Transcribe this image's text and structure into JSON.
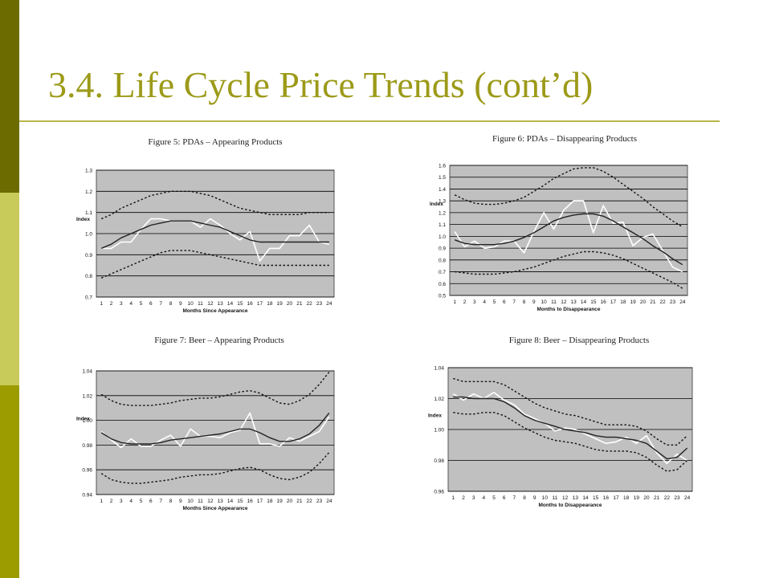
{
  "slide": {
    "title": "3.4. Life Cycle Price Trends (cont’d)",
    "colors": {
      "title": "#9c9a18",
      "bar_dark": "#6b6b00",
      "bar_light": "#c8ca5a",
      "bar_mid": "#9c9c00",
      "plot_bg": "#c0c0c0"
    }
  },
  "chart_data": [
    {
      "type": "line",
      "title": "Figure 5: PDAs – Appearing Products",
      "xlabel": "Months Since Appearance",
      "ylabel": "Index",
      "x": [
        1,
        2,
        3,
        4,
        5,
        6,
        7,
        8,
        9,
        10,
        11,
        12,
        13,
        14,
        15,
        16,
        17,
        18,
        19,
        20,
        21,
        22,
        23,
        24
      ],
      "ylim": [
        0.7,
        1.3
      ],
      "yticks": [
        "0.7",
        "0.8",
        "0.9",
        "1.0",
        "1.1",
        "1.2",
        "1.3"
      ],
      "grid": true,
      "series": [
        {
          "style": "solid-white",
          "values": [
            0.93,
            0.93,
            0.96,
            0.96,
            1.02,
            1.07,
            1.07,
            1.06,
            1.06,
            1.06,
            1.03,
            1.07,
            1.04,
            1.0,
            0.97,
            1.01,
            0.87,
            0.93,
            0.93,
            0.99,
            0.99,
            1.04,
            0.96,
            0.95
          ]
        },
        {
          "style": "solid-dark",
          "values": [
            0.93,
            0.95,
            0.98,
            1.0,
            1.02,
            1.04,
            1.05,
            1.06,
            1.06,
            1.06,
            1.05,
            1.04,
            1.03,
            1.01,
            0.99,
            0.97,
            0.96,
            0.96,
            0.96,
            0.96,
            0.96,
            0.96,
            0.96,
            0.96
          ]
        },
        {
          "style": "dotted-upper",
          "values": [
            1.07,
            1.09,
            1.12,
            1.14,
            1.16,
            1.18,
            1.19,
            1.2,
            1.2,
            1.2,
            1.19,
            1.18,
            1.16,
            1.14,
            1.12,
            1.11,
            1.1,
            1.09,
            1.09,
            1.09,
            1.09,
            1.1,
            1.1,
            1.1
          ]
        },
        {
          "style": "dotted-lower",
          "values": [
            0.79,
            0.81,
            0.83,
            0.85,
            0.87,
            0.89,
            0.91,
            0.92,
            0.92,
            0.92,
            0.91,
            0.9,
            0.89,
            0.88,
            0.87,
            0.86,
            0.85,
            0.85,
            0.85,
            0.85,
            0.85,
            0.85,
            0.85,
            0.85
          ]
        }
      ]
    },
    {
      "type": "line",
      "title": "Figure 6: PDAs – Disappearing Products",
      "xlabel": "Months to Disappearance",
      "ylabel": "Index",
      "x": [
        1,
        2,
        3,
        4,
        5,
        6,
        7,
        8,
        9,
        10,
        11,
        12,
        13,
        14,
        15,
        16,
        17,
        18,
        19,
        20,
        21,
        22,
        23,
        24
      ],
      "ylim": [
        0.5,
        1.6
      ],
      "yticks": [
        "0.5",
        "0.6",
        "0.7",
        "0.8",
        "0.9",
        "1.0",
        "1.1",
        "1.2",
        "1.3",
        "1.4",
        "1.5",
        "1.6"
      ],
      "grid": true,
      "series": [
        {
          "style": "solid-white",
          "values": [
            1.04,
            0.91,
            0.96,
            0.9,
            0.91,
            0.96,
            0.96,
            0.86,
            1.04,
            1.2,
            1.06,
            1.22,
            1.3,
            1.3,
            1.03,
            1.26,
            1.11,
            1.12,
            0.92,
            0.99,
            1.02,
            0.88,
            0.74,
            0.7
          ]
        },
        {
          "style": "solid-dark",
          "values": [
            0.97,
            0.94,
            0.93,
            0.93,
            0.93,
            0.94,
            0.96,
            0.99,
            1.03,
            1.08,
            1.13,
            1.16,
            1.18,
            1.19,
            1.19,
            1.17,
            1.13,
            1.08,
            1.03,
            0.98,
            0.92,
            0.87,
            0.81,
            0.76
          ]
        },
        {
          "style": "dotted-upper",
          "values": [
            1.35,
            1.31,
            1.28,
            1.27,
            1.27,
            1.28,
            1.3,
            1.33,
            1.38,
            1.43,
            1.49,
            1.53,
            1.57,
            1.58,
            1.58,
            1.55,
            1.5,
            1.44,
            1.38,
            1.32,
            1.25,
            1.19,
            1.13,
            1.08
          ]
        },
        {
          "style": "dotted-lower",
          "values": [
            0.7,
            0.69,
            0.68,
            0.68,
            0.68,
            0.69,
            0.7,
            0.72,
            0.74,
            0.77,
            0.8,
            0.83,
            0.85,
            0.87,
            0.87,
            0.86,
            0.84,
            0.81,
            0.77,
            0.73,
            0.69,
            0.65,
            0.61,
            0.56
          ]
        }
      ]
    },
    {
      "type": "line",
      "title": "Figure 7: Beer – Appearing Products",
      "xlabel": "Months Since Appearance",
      "ylabel": "Index",
      "x": [
        1,
        2,
        3,
        4,
        5,
        6,
        7,
        8,
        9,
        10,
        11,
        12,
        13,
        14,
        15,
        16,
        17,
        18,
        19,
        20,
        21,
        22,
        23,
        24
      ],
      "ylim": [
        0.94,
        1.04
      ],
      "yticks": [
        "0.94",
        "0.96",
        "0.98",
        "1.00",
        "1.02",
        "1.04"
      ],
      "grid": true,
      "series": [
        {
          "style": "solid-white",
          "values": [
            0.991,
            0.984,
            0.978,
            0.985,
            0.979,
            0.979,
            0.984,
            0.988,
            0.979,
            0.993,
            0.987,
            0.987,
            0.986,
            0.99,
            0.992,
            1.006,
            0.981,
            0.981,
            0.979,
            0.986,
            0.983,
            0.987,
            0.991,
            1.003
          ]
        },
        {
          "style": "solid-dark",
          "values": [
            0.99,
            0.985,
            0.982,
            0.981,
            0.981,
            0.981,
            0.982,
            0.984,
            0.985,
            0.986,
            0.987,
            0.988,
            0.989,
            0.991,
            0.993,
            0.993,
            0.99,
            0.986,
            0.983,
            0.983,
            0.985,
            0.989,
            0.996,
            1.006
          ]
        },
        {
          "style": "dotted-upper",
          "values": [
            1.021,
            1.016,
            1.013,
            1.012,
            1.012,
            1.012,
            1.013,
            1.014,
            1.016,
            1.017,
            1.018,
            1.018,
            1.019,
            1.021,
            1.023,
            1.024,
            1.022,
            1.018,
            1.014,
            1.013,
            1.016,
            1.021,
            1.029,
            1.039
          ]
        },
        {
          "style": "dotted-lower",
          "values": [
            0.957,
            0.952,
            0.95,
            0.949,
            0.949,
            0.95,
            0.951,
            0.952,
            0.954,
            0.955,
            0.956,
            0.956,
            0.957,
            0.959,
            0.961,
            0.962,
            0.96,
            0.956,
            0.953,
            0.952,
            0.954,
            0.958,
            0.965,
            0.974
          ]
        }
      ]
    },
    {
      "type": "line",
      "title": "Figure 8: Beer – Disappearing Products",
      "xlabel": "Months to Disappearance",
      "ylabel": "Index",
      "x": [
        1,
        2,
        3,
        4,
        5,
        6,
        7,
        8,
        9,
        10,
        11,
        12,
        13,
        14,
        15,
        16,
        17,
        18,
        19,
        20,
        21,
        22,
        23,
        24
      ],
      "ylim": [
        0.96,
        1.04
      ],
      "yticks": [
        "0.96",
        "0.98",
        "1.00",
        "1.02",
        "1.04"
      ],
      "grid": true,
      "series": [
        {
          "style": "solid-white",
          "values": [
            1.023,
            1.019,
            1.023,
            1.02,
            1.024,
            1.019,
            1.016,
            1.01,
            1.007,
            1.004,
            0.999,
            1.001,
            1.0,
            0.997,
            0.994,
            0.991,
            0.992,
            0.995,
            0.991,
            0.996,
            0.985,
            0.978,
            0.984,
            0.98
          ]
        },
        {
          "style": "solid-dark",
          "values": [
            1.021,
            1.021,
            1.02,
            1.02,
            1.02,
            1.018,
            1.014,
            1.009,
            1.006,
            1.004,
            1.002,
            1.0,
            0.999,
            0.998,
            0.996,
            0.995,
            0.995,
            0.994,
            0.993,
            0.991,
            0.986,
            0.981,
            0.982,
            0.988
          ]
        },
        {
          "style": "dotted-upper",
          "values": [
            1.033,
            1.031,
            1.031,
            1.031,
            1.031,
            1.029,
            1.025,
            1.021,
            1.017,
            1.014,
            1.012,
            1.01,
            1.009,
            1.007,
            1.005,
            1.003,
            1.003,
            1.003,
            1.002,
            0.999,
            0.994,
            0.99,
            0.99,
            0.996
          ]
        },
        {
          "style": "dotted-lower",
          "values": [
            1.011,
            1.01,
            1.01,
            1.011,
            1.011,
            1.009,
            1.005,
            1.001,
            0.998,
            0.995,
            0.993,
            0.992,
            0.991,
            0.989,
            0.987,
            0.986,
            0.986,
            0.986,
            0.985,
            0.982,
            0.977,
            0.973,
            0.974,
            0.98
          ]
        }
      ]
    }
  ]
}
